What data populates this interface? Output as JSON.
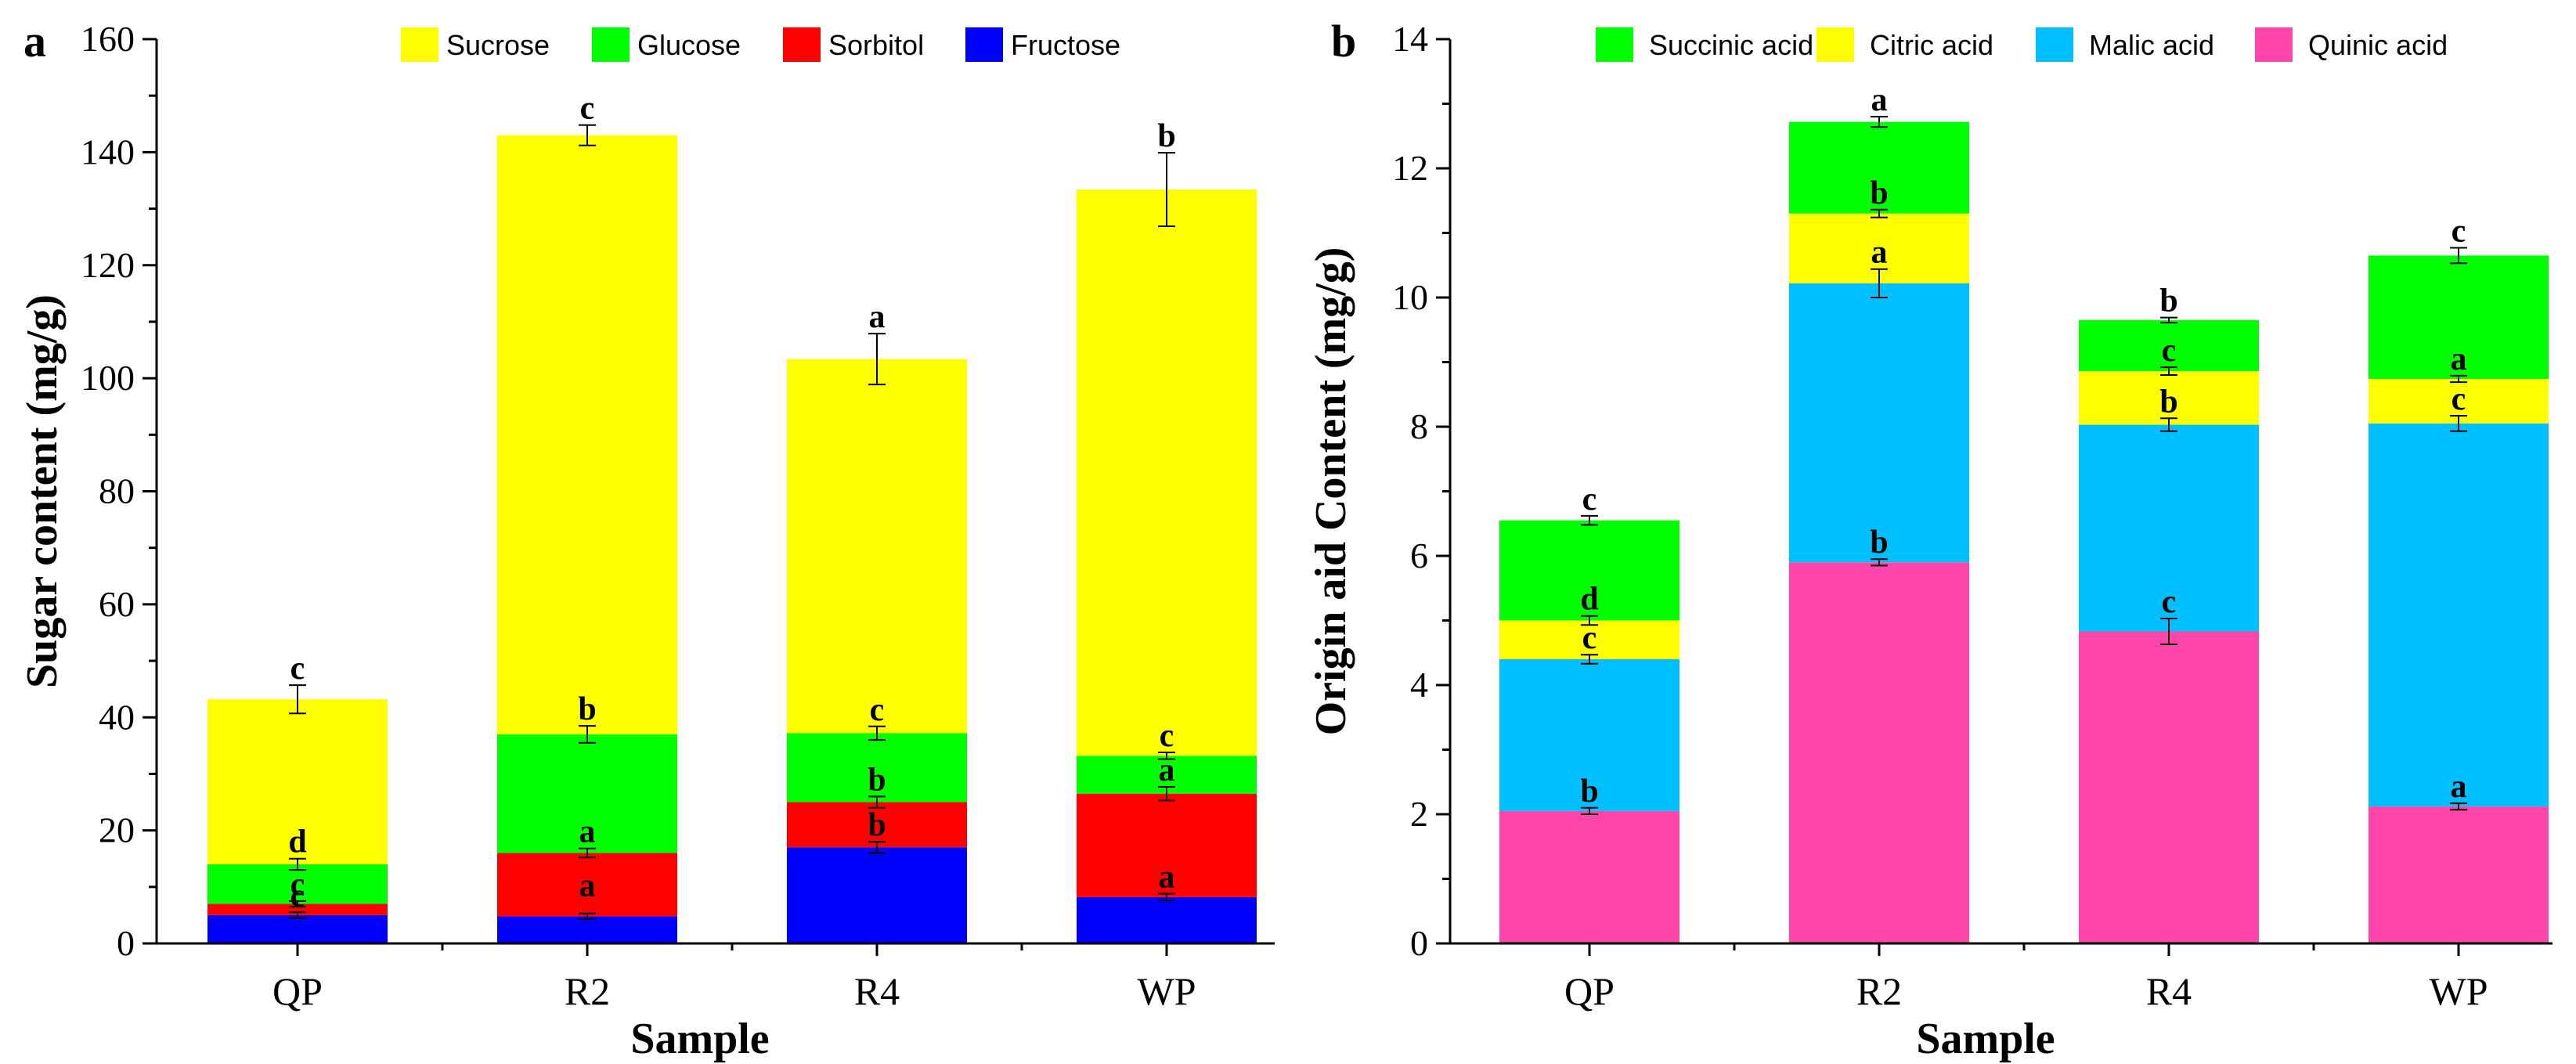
{
  "chart_data": [
    {
      "type": "bar",
      "stacked": true,
      "panel_letter": "a",
      "title": "",
      "xlabel": "Sample",
      "ylabel": "Sugar content (mg/g)",
      "ylim": [
        0,
        160
      ],
      "yticks": [
        0,
        20,
        40,
        60,
        80,
        100,
        120,
        140,
        160
      ],
      "categories": [
        "QP",
        "R2",
        "R4",
        "WP"
      ],
      "legend_position": "top",
      "legend_order": [
        "Sucrose",
        "Glucose",
        "Sorbitol",
        "Fructose"
      ],
      "series": [
        {
          "name": "Fructose",
          "color": "#0000ff",
          "values": [
            5,
            4.8,
            17,
            8.2
          ],
          "errors": [
            0.5,
            0.5,
            1.0,
            0.6
          ],
          "letters": [
            "c",
            "",
            "b",
            "a"
          ]
        },
        {
          "name": "Sorbitol",
          "color": "#ff0000",
          "values": [
            2,
            11.2,
            8,
            18.3
          ],
          "errors": [
            0.5,
            0.8,
            1.0,
            1.2
          ],
          "letters": [
            "c",
            "a",
            "b",
            "a"
          ]
        },
        {
          "name": "Glucose",
          "color": "#00ff00",
          "values": [
            7,
            21,
            12.2,
            6.7
          ],
          "errors": [
            1.0,
            1.5,
            1.2,
            0.6
          ],
          "letters": [
            "d",
            "b",
            "c",
            "c"
          ]
        },
        {
          "name": "Sucrose",
          "color": "#ffff00",
          "values": [
            29.2,
            106,
            66.2,
            100.2
          ],
          "errors": [
            2.5,
            1.8,
            4.5,
            6.5
          ],
          "letters": [
            "c",
            "c",
            "a",
            "b"
          ]
        }
      ],
      "extra_letters": [
        {
          "category": "R2",
          "letter": "a",
          "value": 4.8
        }
      ]
    },
    {
      "type": "bar",
      "stacked": true,
      "panel_letter": "b",
      "title": "",
      "xlabel": "Sample",
      "ylabel": "Origin aid Content (mg/g)",
      "ylim": [
        0,
        14
      ],
      "yticks": [
        0,
        2,
        4,
        6,
        8,
        10,
        12,
        14
      ],
      "categories": [
        "QP",
        "R2",
        "R4",
        "WP"
      ],
      "legend_position": "top",
      "legend_order": [
        "Succinic acid",
        "Citric acid",
        "Malic acid",
        "Quinic acid"
      ],
      "series": [
        {
          "name": "Quinic acid",
          "color": "#ff44aa",
          "values": [
            2.05,
            5.9,
            4.83,
            2.12
          ],
          "errors": [
            0.05,
            0.05,
            0.2,
            0.05
          ],
          "letters": [
            "b",
            "b",
            "c",
            "a"
          ]
        },
        {
          "name": "Malic acid",
          "color": "#00bfff",
          "values": [
            2.35,
            4.32,
            3.2,
            5.93
          ],
          "errors": [
            0.07,
            0.22,
            0.1,
            0.12
          ],
          "letters": [
            "c",
            "a",
            "b",
            "c"
          ]
        },
        {
          "name": "Citric acid",
          "color": "#ffff00",
          "values": [
            0.6,
            1.08,
            0.83,
            0.69
          ],
          "errors": [
            0.07,
            0.06,
            0.06,
            0.05
          ],
          "letters": [
            "d",
            "b",
            "c",
            "a"
          ]
        },
        {
          "name": "Succinic acid",
          "color": "#00ff00",
          "values": [
            1.55,
            1.42,
            0.79,
            1.91
          ],
          "errors": [
            0.07,
            0.08,
            0.04,
            0.12
          ],
          "letters": [
            "c",
            "a",
            "b",
            "c"
          ]
        }
      ]
    }
  ]
}
